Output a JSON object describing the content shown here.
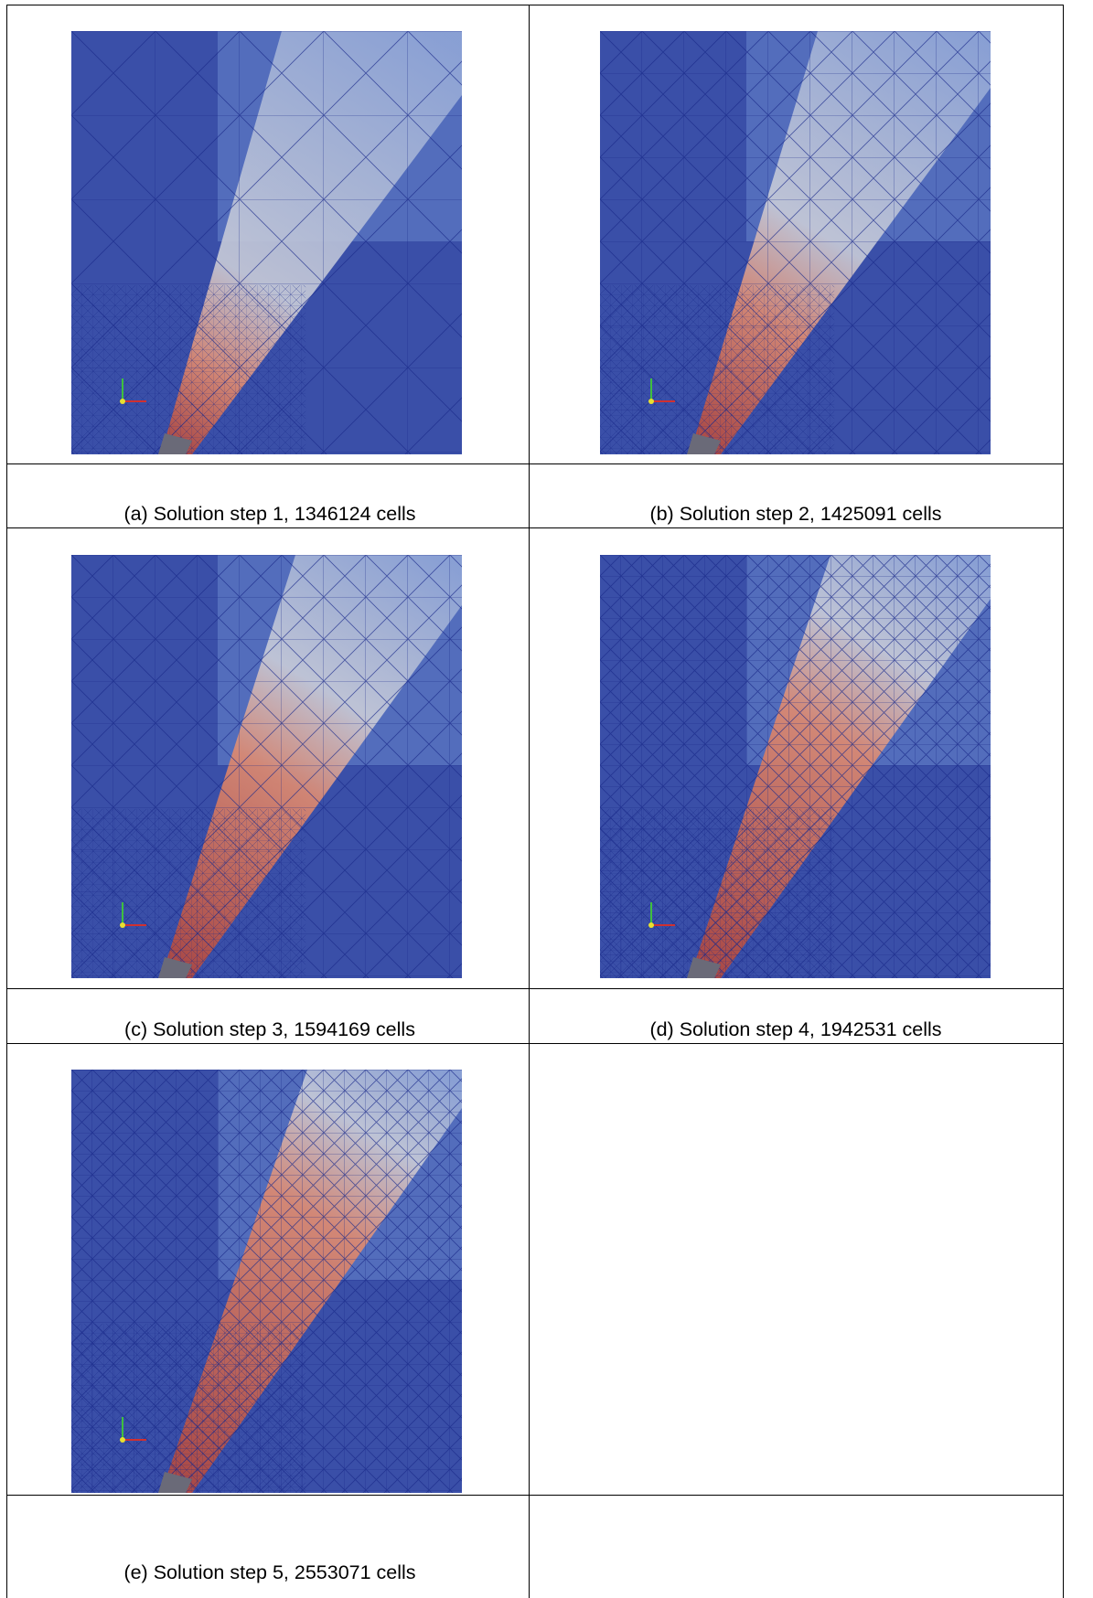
{
  "figures": [
    {
      "caption": "(a) Solution step 1, 1346124 cells"
    },
    {
      "caption": "(b) Solution step 2, 1425091 cells"
    },
    {
      "caption": "(c) Solution step 3, 1594169 cells"
    },
    {
      "caption": "(d) Solution step 4, 1942531 cells"
    },
    {
      "caption": "(e) Solution step 5, 2553071 cells"
    }
  ]
}
